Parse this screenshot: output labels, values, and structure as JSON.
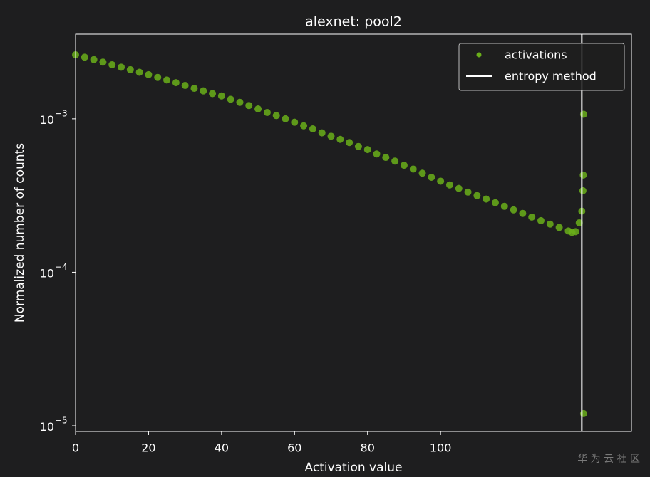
{
  "chart_data": {
    "type": "scatter",
    "title": "alexnet: pool2",
    "x_label": "Activation value",
    "y_label": "Normalized number of counts",
    "log_y": true,
    "legend": "upper right",
    "xlim": [
      0,
      152.3
    ],
    "ylim": [
      9.18e-06,
      0.00356
    ],
    "xticks": [
      0,
      20,
      40,
      60,
      80,
      100
    ],
    "yticks": [
      {
        "value": 1e-05,
        "label": "10",
        "power": "−5"
      },
      {
        "value": 0.0001,
        "label": "10",
        "power": "−4"
      },
      {
        "value": 0.001,
        "label": "10",
        "power": "−3"
      }
    ],
    "x": [
      0,
      2.5,
      5,
      7.5,
      10,
      12.5,
      15,
      17.5,
      20,
      22.5,
      25,
      27.5,
      30,
      32.5,
      35,
      37.5,
      40,
      42.5,
      45,
      47.5,
      50,
      52.5,
      55,
      57.5,
      60,
      62.5,
      65,
      67.5,
      70,
      72.5,
      75,
      77.5,
      80,
      82.5,
      85,
      87.5,
      90,
      92.5,
      95,
      97.5,
      100,
      102.5,
      105,
      107.5,
      110,
      112.5,
      115,
      117.5,
      120,
      122.5,
      125,
      127.5,
      130,
      132.5,
      135,
      136,
      137,
      138,
      138.7,
      139,
      139.1,
      139.2,
      139.2
    ],
    "series": [
      {
        "name": "activations",
        "color": "#6aaf1a",
        "values": [
          0.00261,
          0.00252,
          0.00243,
          0.00234,
          0.00225,
          0.00217,
          0.00209,
          0.00201,
          0.00194,
          0.00186,
          0.00179,
          0.00172,
          0.00165,
          0.00158,
          0.00152,
          0.00146,
          0.00141,
          0.00134,
          0.00128,
          0.00122,
          0.00116,
          0.0011,
          0.00105,
          0.001,
          0.00095,
          0.0009,
          0.00086,
          0.00081,
          0.00077,
          0.000735,
          0.0007,
          0.00066,
          0.00063,
          0.00059,
          0.00056,
          0.00053,
          0.000498,
          0.00047,
          0.000442,
          0.000416,
          0.000392,
          0.000371,
          0.000352,
          0.000333,
          0.000316,
          0.0003,
          0.000284,
          0.000269,
          0.000255,
          0.000242,
          0.000229,
          0.000217,
          0.000206,
          0.000196,
          0.000186,
          0.000182,
          0.000184,
          0.00021,
          0.00025,
          0.00034,
          0.00043,
          0.00107,
          1.2e-05
        ]
      }
    ],
    "reference_line": {
      "name": "entropy method",
      "x": 138.7,
      "color": "#ffffff"
    }
  },
  "watermark": "华 为 云 社 区"
}
